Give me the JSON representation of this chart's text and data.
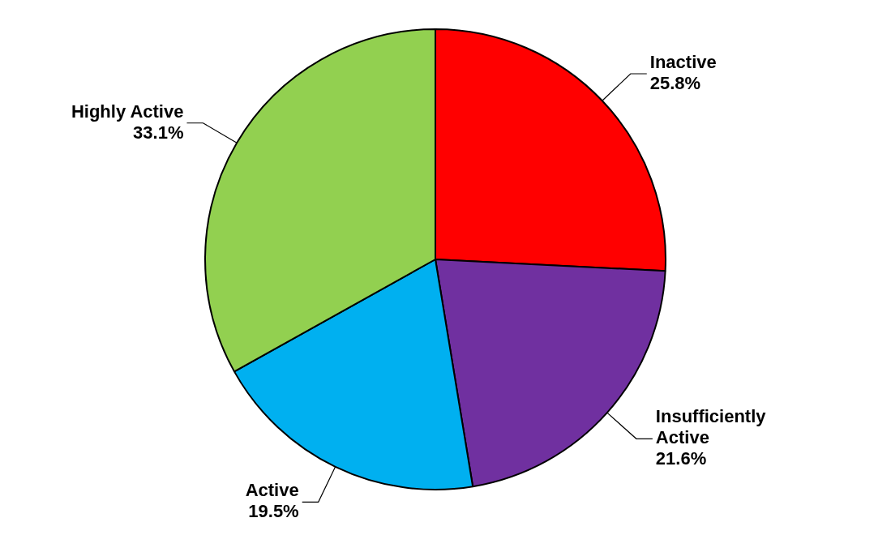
{
  "chart_data": {
    "type": "pie",
    "categories": [
      "Inactive",
      "Insufficiently Active",
      "Active",
      "Highly Active"
    ],
    "values": [
      25.8,
      21.6,
      19.5,
      33.1
    ],
    "value_labels": [
      "25.8%",
      "21.6%",
      "19.5%",
      "33.1%"
    ],
    "colors": [
      "#ff0000",
      "#7030a0",
      "#00b0f0",
      "#92d050"
    ],
    "legend": false
  }
}
